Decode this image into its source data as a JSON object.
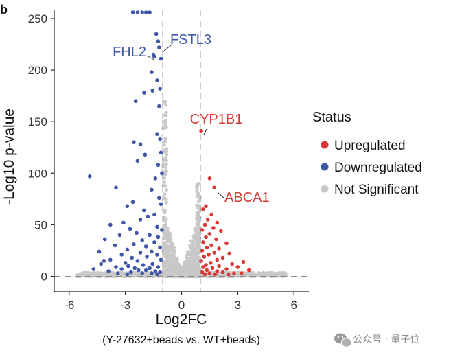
{
  "chart_data": {
    "type": "scatter",
    "panel_label": "b",
    "xlabel": "Log2FC",
    "xlabel_sub": "(Y-27632+beads vs. WT+beads)",
    "ylabel": "-Log10 p-value",
    "xlim": [
      -6.8,
      6.8
    ],
    "ylim": [
      -15,
      258
    ],
    "xticks": [
      -6,
      -3,
      0,
      3,
      6
    ],
    "yticks": [
      0,
      50,
      100,
      150,
      200,
      250
    ],
    "thresholds": {
      "log2fc": [
        -1,
        1
      ],
      "neg_log10_p": 0
    },
    "legend": {
      "title": "Status",
      "position": "right",
      "entries": [
        {
          "label": "Upregulated",
          "color": "#d93a36"
        },
        {
          "label": "Downregulated",
          "color": "#3e56a6"
        },
        {
          "label": "Not Significant",
          "color": "#c8c8c8"
        }
      ]
    },
    "series": [
      {
        "name": "Downregulated",
        "color": "#3e56a6",
        "points": [
          [
            -2.6,
            256
          ],
          [
            -2.35,
            256
          ],
          [
            -2.1,
            256
          ],
          [
            -1.9,
            256
          ],
          [
            -1.7,
            256
          ],
          [
            -1.35,
            235
          ],
          [
            -1.25,
            228
          ],
          [
            -1.2,
            222
          ],
          [
            -1.5,
            215
          ],
          [
            -1.45,
            213
          ],
          [
            -1.1,
            211
          ],
          [
            -1.6,
            198
          ],
          [
            -1.3,
            190
          ],
          [
            -1.15,
            182
          ],
          [
            -1.55,
            180
          ],
          [
            -2.0,
            178
          ],
          [
            -2.45,
            170
          ],
          [
            -1.2,
            165
          ],
          [
            -1.3,
            138
          ],
          [
            -1.15,
            133
          ],
          [
            -2.55,
            130
          ],
          [
            -2.2,
            128
          ],
          [
            -1.95,
            118
          ],
          [
            -2.35,
            112
          ],
          [
            -1.1,
            120
          ],
          [
            -1.25,
            108
          ],
          [
            -1.05,
            100
          ],
          [
            -1.4,
            95
          ],
          [
            -4.9,
            97
          ],
          [
            -3.5,
            86
          ],
          [
            -1.6,
            84
          ],
          [
            -1.2,
            76
          ],
          [
            -1.1,
            70
          ],
          [
            -2.6,
            72
          ],
          [
            -2.9,
            68
          ],
          [
            -2.0,
            64
          ],
          [
            -1.45,
            60
          ],
          [
            -1.8,
            58
          ],
          [
            -2.2,
            55
          ],
          [
            -3.1,
            52
          ],
          [
            -3.8,
            50
          ],
          [
            -1.3,
            48
          ],
          [
            -2.75,
            46
          ],
          [
            -1.05,
            45
          ],
          [
            -2.4,
            42
          ],
          [
            -3.3,
            40
          ],
          [
            -1.7,
            40
          ],
          [
            -1.25,
            38
          ],
          [
            -4.1,
            36
          ],
          [
            -2.1,
            35
          ],
          [
            -1.45,
            33
          ],
          [
            -2.55,
            31
          ],
          [
            -3.55,
            30
          ],
          [
            -1.9,
            29
          ],
          [
            -1.15,
            28
          ],
          [
            -2.9,
            26
          ],
          [
            -4.4,
            24
          ],
          [
            -1.6,
            24
          ],
          [
            -2.2,
            23
          ],
          [
            -3.2,
            21
          ],
          [
            -1.3,
            21
          ],
          [
            -1.85,
            19
          ],
          [
            -2.65,
            18
          ],
          [
            -3.8,
            16
          ],
          [
            -4.15,
            15
          ],
          [
            -1.1,
            16
          ],
          [
            -2.35,
            15
          ],
          [
            -3.0,
            13
          ],
          [
            -1.55,
            12
          ],
          [
            -4.3,
            12
          ],
          [
            -2.05,
            11
          ],
          [
            -2.85,
            10
          ],
          [
            -3.5,
            9
          ],
          [
            -1.25,
            9
          ],
          [
            -1.7,
            8
          ],
          [
            -2.5,
            8
          ],
          [
            -4.7,
            7
          ],
          [
            -3.2,
            7
          ],
          [
            -1.9,
            6
          ],
          [
            -2.3,
            6
          ],
          [
            -1.4,
            5
          ],
          [
            -3.9,
            5
          ],
          [
            -2.7,
            4
          ],
          [
            -1.15,
            4
          ],
          [
            -3.4,
            3
          ],
          [
            -1.6,
            3
          ],
          [
            -2.1,
            3
          ],
          [
            -2.9,
            2
          ],
          [
            -1.3,
            2
          ]
        ]
      },
      {
        "name": "Upregulated",
        "color": "#d93a36",
        "points": [
          [
            1.05,
            141
          ],
          [
            1.5,
            95
          ],
          [
            1.75,
            86
          ],
          [
            1.3,
            68
          ],
          [
            1.15,
            65
          ],
          [
            1.6,
            60
          ],
          [
            1.4,
            55
          ],
          [
            1.9,
            52
          ],
          [
            1.25,
            50
          ],
          [
            1.7,
            47
          ],
          [
            1.1,
            45
          ],
          [
            2.1,
            44
          ],
          [
            1.5,
            41
          ],
          [
            1.3,
            38
          ],
          [
            1.85,
            36
          ],
          [
            1.15,
            33
          ],
          [
            2.4,
            32
          ],
          [
            1.6,
            30
          ],
          [
            1.35,
            28
          ],
          [
            2.0,
            27
          ],
          [
            1.1,
            25
          ],
          [
            1.75,
            23
          ],
          [
            2.55,
            22
          ],
          [
            1.45,
            21
          ],
          [
            1.2,
            19
          ],
          [
            2.2,
            18
          ],
          [
            1.9,
            16
          ],
          [
            1.05,
            15
          ],
          [
            3.3,
            14
          ],
          [
            1.55,
            13
          ],
          [
            2.7,
            12
          ],
          [
            1.3,
            11
          ],
          [
            2.0,
            10
          ],
          [
            1.15,
            9
          ],
          [
            3.0,
            9
          ],
          [
            1.65,
            8
          ],
          [
            2.4,
            7
          ],
          [
            1.35,
            6
          ],
          [
            3.6,
            6
          ],
          [
            1.9,
            5
          ],
          [
            2.2,
            4
          ],
          [
            1.1,
            4
          ],
          [
            2.8,
            3
          ],
          [
            1.5,
            3
          ],
          [
            3.2,
            3
          ],
          [
            1.25,
            2
          ],
          [
            2.5,
            2
          ],
          [
            1.8,
            2
          ]
        ]
      }
    ],
    "annotations": [
      {
        "label": "FSTL3",
        "x": -1.1,
        "y": 218,
        "color": "#3e56a6"
      },
      {
        "label": "FHL2",
        "x": -1.2,
        "y": 222,
        "color": "#3e56a6"
      },
      {
        "label": "CYP1B1",
        "x": 1.05,
        "y": 141,
        "color": "#d93a36"
      },
      {
        "label": "ABCA1",
        "x": 1.75,
        "y": 86,
        "color": "#d93a36"
      }
    ]
  },
  "watermark": {
    "text": "公众号 · 量子位"
  }
}
